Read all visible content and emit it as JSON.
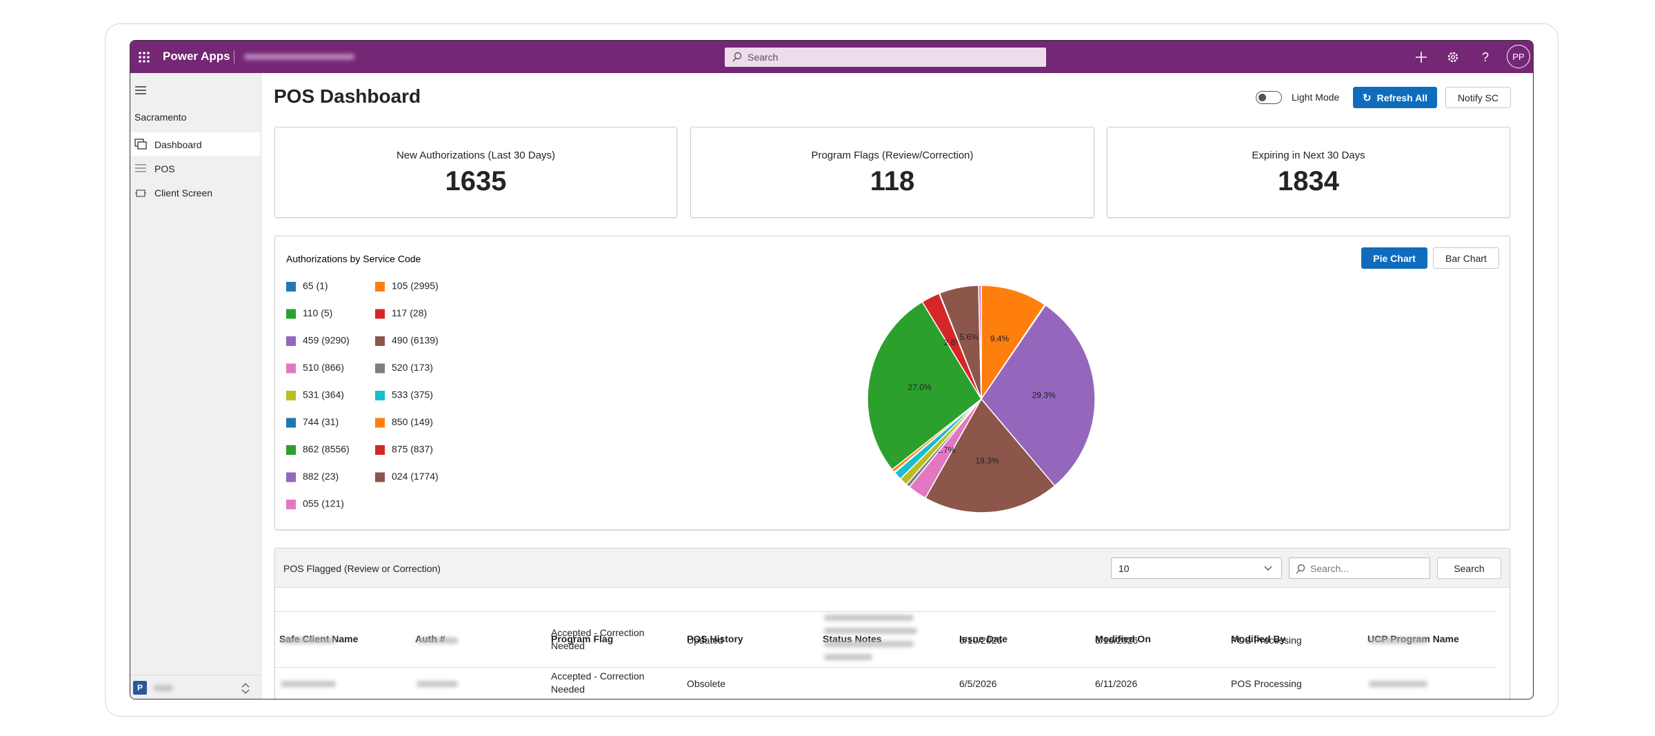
{
  "app": {
    "name": "Power Apps",
    "search": "Search",
    "avatar": "PP"
  },
  "sidebar": {
    "location": "Sacramento",
    "items": [
      "Dashboard",
      "POS",
      "Client Screen"
    ],
    "env_badge": "P"
  },
  "header": {
    "title": "POS Dashboard",
    "toggle": "Light Mode",
    "refresh": "Refresh All",
    "notify": "Notify SC"
  },
  "kpis": [
    {
      "label": "New Authorizations (Last 30 Days)",
      "value": 1635
    },
    {
      "label": "Program Flags (Review/Correction)",
      "value": 118
    },
    {
      "label": "Expiring in Next 30 Days",
      "value": 1834
    }
  ],
  "chart_buttons": [
    "Pie Chart",
    "Bar Chart"
  ],
  "chart_data": {
    "type": "pie",
    "title": "Authorizations by Service Code",
    "labels": [
      "65 (1)",
      "105 (2995)",
      "110 (5)",
      "117 (28)",
      "459 (9290)",
      "490 (6139)",
      "510 (866)",
      "520 (173)",
      "531 (364)",
      "533 (375)",
      "744 (31)",
      "850 (149)",
      "862 (8556)",
      "875 (837)",
      "882 (23)",
      "024 (1774)",
      "055 (121)"
    ],
    "values": [
      1,
      2995,
      5,
      28,
      9290,
      6139,
      866,
      173,
      364,
      375,
      31,
      149,
      8556,
      837,
      23,
      1774,
      121
    ],
    "value_labels": [
      null,
      "9.4%",
      null,
      null,
      "29.3%",
      "19.3%",
      "2.7%",
      null,
      null,
      null,
      null,
      null,
      "27.0%",
      "2.6%",
      null,
      "5.6%",
      null
    ],
    "colors": [
      "#1f77b4",
      "#ff7f0e",
      "#2ca02c",
      "#d62728",
      "#9467bd",
      "#8c564b",
      "#e377c2",
      "#7f7f7f",
      "#bcbd22",
      "#17becf",
      "#1f77b4",
      "#ff7f0e",
      "#2ca02c",
      "#d62728",
      "#9467bd",
      "#8c564b",
      "#e377c2"
    ]
  },
  "table": {
    "title": "POS Flagged (Review or Correction)",
    "page_size": 10,
    "search_placeholder": "Search...",
    "search_button": "Search",
    "columns": [
      "Safe Client Name",
      "Auth #",
      "Program Flag",
      "POS History",
      "Status Notes",
      "Issue Date",
      "Modified On",
      "Modified By",
      "UCP Program Name"
    ],
    "rows": [
      {
        "program_flag": "Accepted - Correction Needed",
        "pos_history": "Updated",
        "issue_date": "6/10/2026",
        "modified_on": "6/16/2026",
        "modified_by": "POS Processing"
      },
      {
        "program_flag": "Accepted - Correction Needed",
        "pos_history": "Obsolete",
        "issue_date": "6/5/2026",
        "modified_on": "6/11/2026",
        "modified_by": "POS Processing"
      }
    ]
  }
}
